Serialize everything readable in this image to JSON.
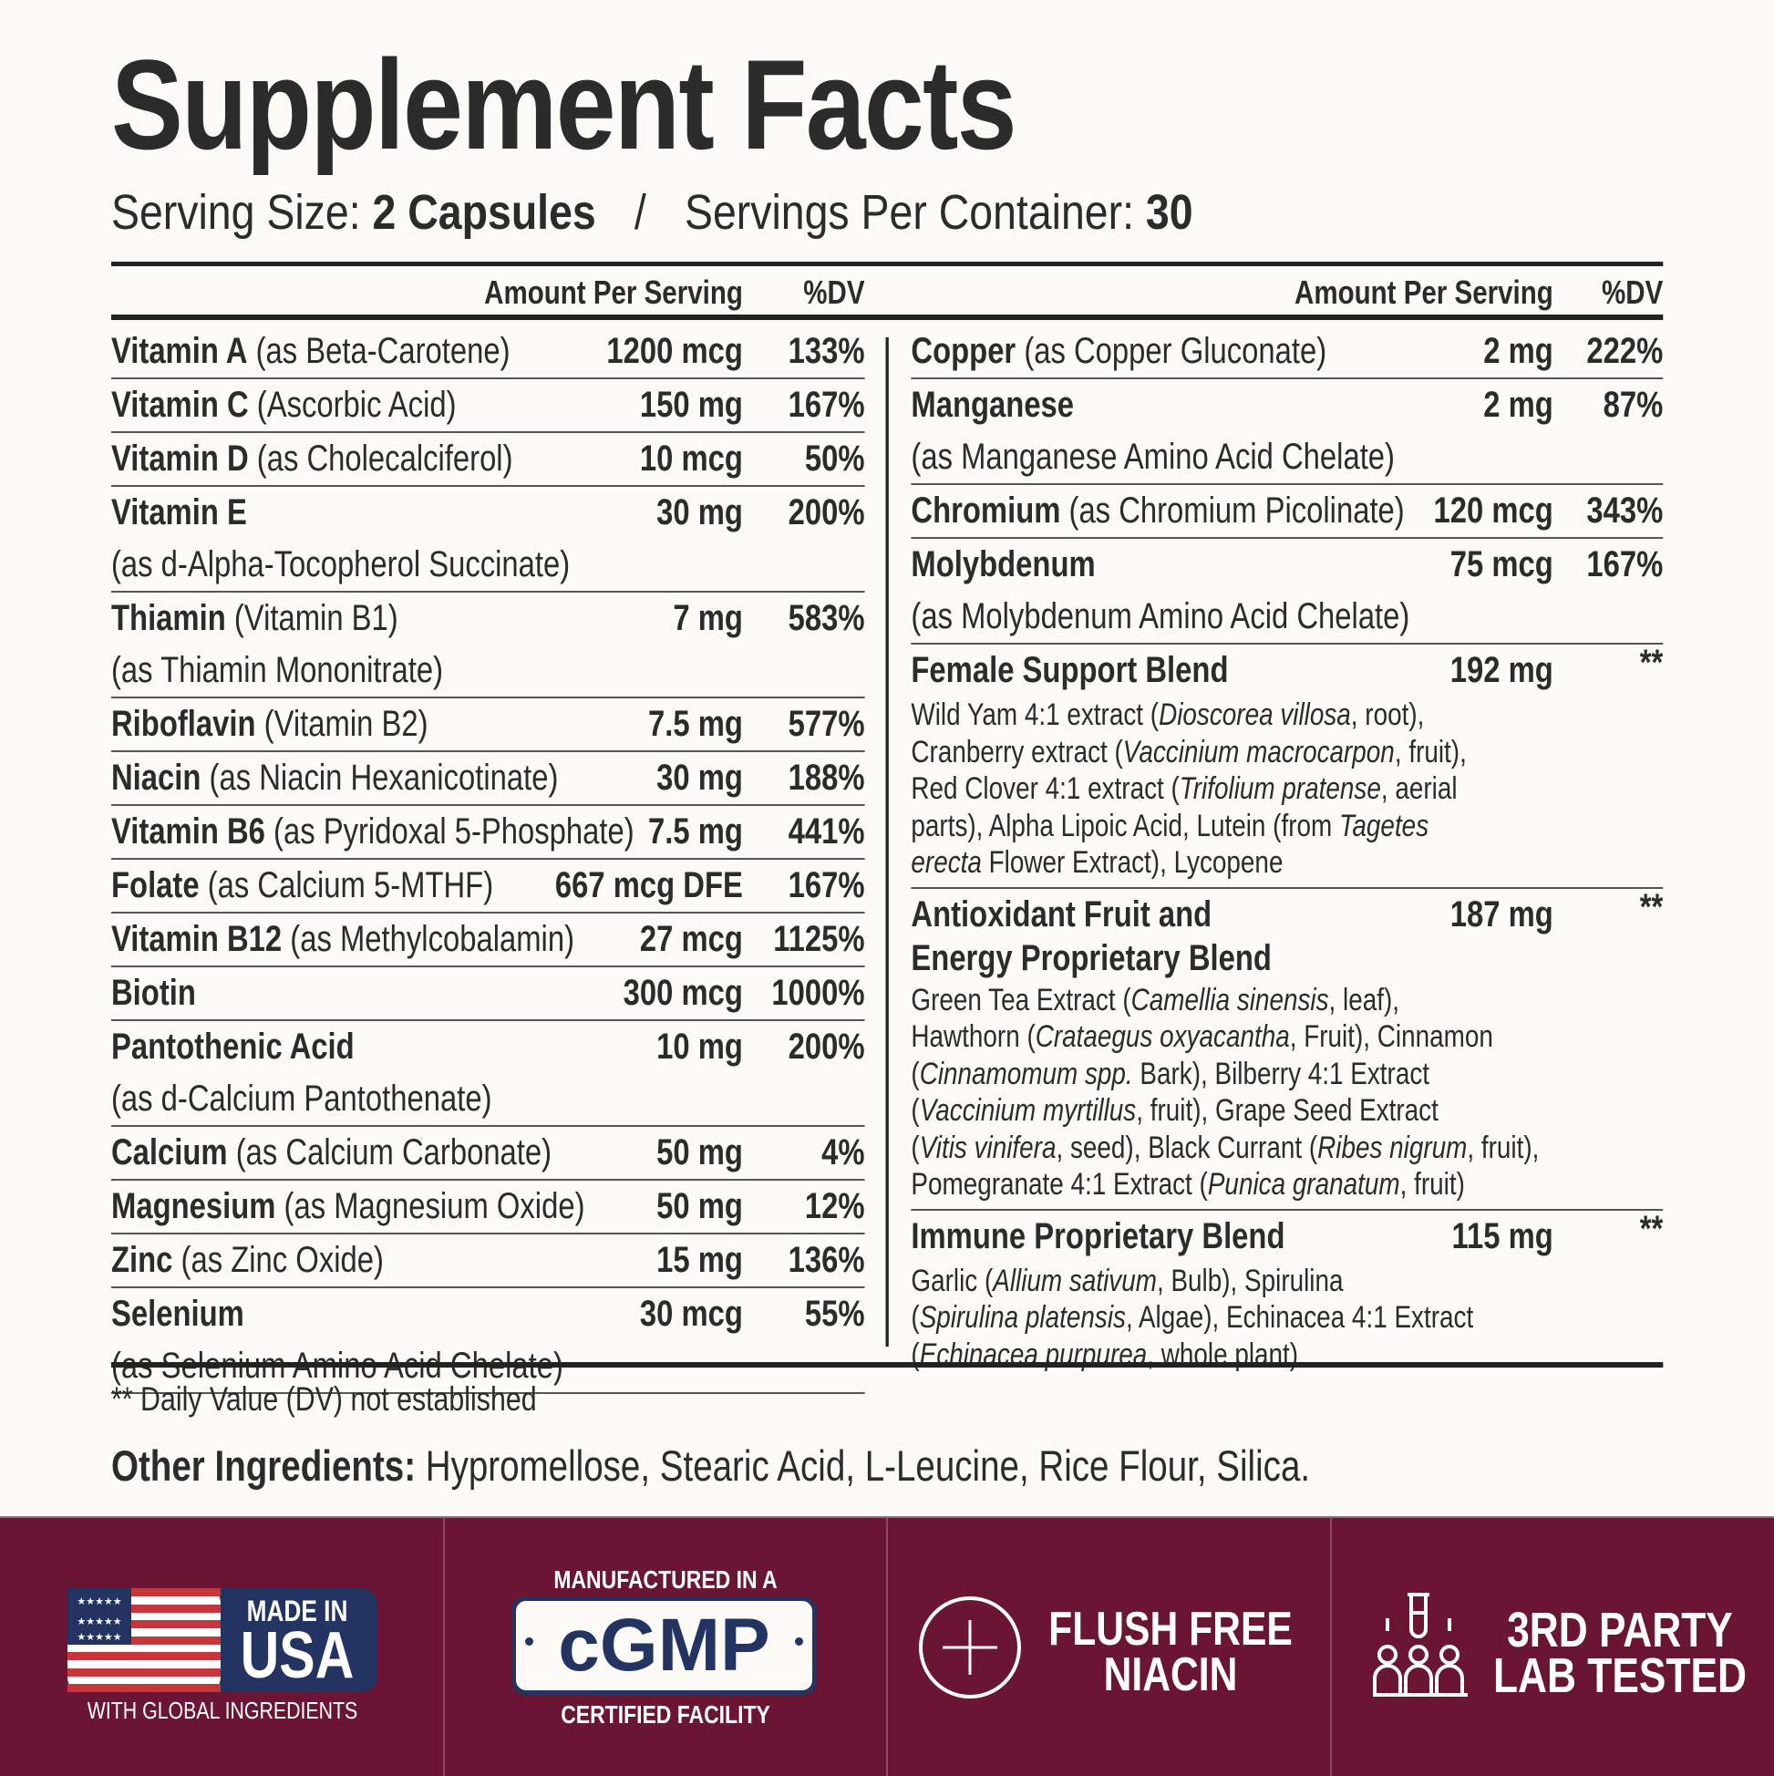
{
  "title": "Supplement Facts",
  "serving": {
    "size_label": "Serving Size:",
    "size_value": "2 Capsules",
    "separator": "/",
    "per_container_label": "Servings Per Container:",
    "per_container_value": "30"
  },
  "headers": {
    "amount": "Amount Per Serving",
    "dv": "%DV"
  },
  "left_rows": [
    {
      "name": "Vitamin A",
      "form": "(as Beta-Carotene)",
      "amount": "1200 mcg",
      "dv": "133%"
    },
    {
      "name": "Vitamin C",
      "form": "(Ascorbic Acid)",
      "amount": "150 mg",
      "dv": "167%"
    },
    {
      "name": "Vitamin D",
      "form": "(as Cholecalciferol)",
      "amount": "10 mcg",
      "dv": "50%"
    },
    {
      "name": "Vitamin E",
      "form": "",
      "amount": "30 mg",
      "dv": "200%",
      "sub": "(as d-Alpha-Tocopherol Succinate)"
    },
    {
      "name": "Thiamin",
      "form": "(Vitamin B1)",
      "amount": "7 mg",
      "dv": "583%",
      "sub": "(as Thiamin Mononitrate)"
    },
    {
      "name": "Riboflavin",
      "form": "(Vitamin B2)",
      "amount": "7.5 mg",
      "dv": "577%"
    },
    {
      "name": "Niacin",
      "form": "(as Niacin Hexanicotinate)",
      "amount": "30 mg",
      "dv": "188%"
    },
    {
      "name": "Vitamin B6",
      "form": "(as Pyridoxal 5-Phosphate)",
      "amount": "7.5 mg",
      "dv": "441%"
    },
    {
      "name": "Folate",
      "form": "(as Calcium 5-MTHF)",
      "amount": "667 mcg DFE",
      "dv": "167%"
    },
    {
      "name": "Vitamin B12",
      "form": "(as Methylcobalamin)",
      "amount": "27 mcg",
      "dv": "1125%"
    },
    {
      "name": "Biotin",
      "form": "",
      "amount": "300 mcg",
      "dv": "1000%"
    },
    {
      "name": "Pantothenic Acid",
      "form": "",
      "amount": "10 mg",
      "dv": "200%",
      "sub": "(as d-Calcium Pantothenate)"
    },
    {
      "name": "Calcium",
      "form": "(as Calcium Carbonate)",
      "amount": "50 mg",
      "dv": "4%"
    },
    {
      "name": "Magnesium",
      "form": "(as Magnesium Oxide)",
      "amount": "50 mg",
      "dv": "12%"
    },
    {
      "name": "Zinc",
      "form": "(as Zinc Oxide)",
      "amount": "15 mg",
      "dv": "136%"
    },
    {
      "name": "Selenium",
      "form": "",
      "amount": "30 mcg",
      "dv": "55%",
      "sub": "(as Selenium Amino Acid Chelate)"
    }
  ],
  "right_rows": [
    {
      "name": "Copper",
      "form": "(as Copper Gluconate)",
      "amount": "2 mg",
      "dv": "222%"
    },
    {
      "name": "Manganese",
      "form": "",
      "amount": "2 mg",
      "dv": "87%",
      "sub": "(as Manganese Amino Acid Chelate)"
    },
    {
      "name": "Chromium",
      "form": "(as Chromium Picolinate)",
      "amount": "120 mcg",
      "dv": "343%"
    },
    {
      "name": "Molybdenum",
      "form": "",
      "amount": "75 mcg",
      "dv": "167%",
      "sub": "(as Molybdenum Amino Acid Chelate)"
    }
  ],
  "blends": [
    {
      "name_lines": [
        "Female Support Blend"
      ],
      "amount": "192 mg",
      "dv": "**",
      "lines": [
        [
          {
            "t": "Wild Yam 4:1 extract ("
          },
          {
            "t": "Dioscorea villosa",
            "i": true
          },
          {
            "t": ", root),"
          }
        ],
        [
          {
            "t": "Cranberry extract ("
          },
          {
            "t": "Vaccinium macrocarpon",
            "i": true
          },
          {
            "t": ", fruit),"
          }
        ],
        [
          {
            "t": "Red Clover 4:1 extract ("
          },
          {
            "t": "Trifolium pratense",
            "i": true
          },
          {
            "t": ", aerial"
          }
        ],
        [
          {
            "t": "parts), Alpha Lipoic Acid, Lutein (from "
          },
          {
            "t": "Tagetes",
            "i": true
          }
        ],
        [
          {
            "t": "erecta",
            "i": true
          },
          {
            "t": " Flower Extract), Lycopene"
          }
        ]
      ]
    },
    {
      "name_lines": [
        "Antioxidant Fruit and",
        "Energy Proprietary Blend"
      ],
      "amount": "187 mg",
      "dv": "**",
      "lines": [
        [
          {
            "t": "Green Tea Extract ("
          },
          {
            "t": "Camellia sinensis",
            "i": true
          },
          {
            "t": ", leaf),"
          }
        ],
        [
          {
            "t": "Hawthorn ("
          },
          {
            "t": "Crataegus oxyacantha",
            "i": true
          },
          {
            "t": ", Fruit), Cinnamon"
          }
        ],
        [
          {
            "t": "("
          },
          {
            "t": "Cinnamomum spp.",
            "i": true
          },
          {
            "t": " Bark), Bilberry 4:1 Extract"
          }
        ],
        [
          {
            "t": "("
          },
          {
            "t": "Vaccinium myrtillus",
            "i": true
          },
          {
            "t": ", fruit), Grape Seed Extract"
          }
        ],
        [
          {
            "t": "("
          },
          {
            "t": "Vitis vinifera",
            "i": true
          },
          {
            "t": ", seed), Black Currant ("
          },
          {
            "t": "Ribes nigrum",
            "i": true
          },
          {
            "t": ", fruit),"
          }
        ],
        [
          {
            "t": "Pomegranate 4:1 Extract ("
          },
          {
            "t": "Punica granatum",
            "i": true
          },
          {
            "t": ", fruit)"
          }
        ]
      ]
    },
    {
      "name_lines": [
        "Immune Proprietary Blend"
      ],
      "amount": "115 mg",
      "dv": "**",
      "lines": [
        [
          {
            "t": "Garlic ("
          },
          {
            "t": "Allium sativum",
            "i": true
          },
          {
            "t": ", Bulb), Spirulina"
          }
        ],
        [
          {
            "t": "("
          },
          {
            "t": "Spirulina platensis",
            "i": true
          },
          {
            "t": ", Algae), Echinacea 4:1 Extract"
          }
        ],
        [
          {
            "t": "("
          },
          {
            "t": "Echinacea purpurea",
            "i": true
          },
          {
            "t": ", whole plant)"
          }
        ]
      ]
    }
  ],
  "footnote": "** Daily Value (DV) not established",
  "other_ingredients": {
    "label": "Other Ingredients:",
    "value": " Hypromellose, Stearic Acid, L-Leucine, Rice Flour, Silica."
  },
  "badges": {
    "usa": {
      "line1": "MADE IN",
      "line2": "USA",
      "caption": "WITH GLOBAL INGREDIENTS",
      "icon": "us-flag-icon"
    },
    "cgmp": {
      "top": "MANUFACTURED IN A",
      "logo": "cGMP",
      "bottom": "CERTIFIED FACILITY"
    },
    "niacin": {
      "line1": "FLUSH FREE",
      "line2": "NIACIN",
      "icon": "plus-circle-icon"
    },
    "lab": {
      "line1": "3RD PARTY",
      "line2": "LAB TESTED",
      "icon": "lab-test-tube-people-icon"
    }
  },
  "colors": {
    "text": "#2b2b2b",
    "background": "#fbfaf6",
    "band": "#6b1535",
    "flag_red": "#c8363b",
    "flag_blue": "#233462"
  }
}
